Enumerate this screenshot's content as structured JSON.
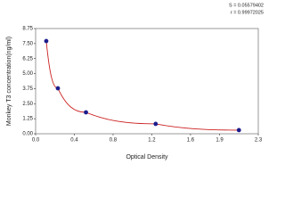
{
  "chart_data": {
    "type": "scatter",
    "x_label": "Optical Density",
    "y_label": "Monkey T3 concentration(ng/ml)",
    "annotations": [
      "S = 0.05579402",
      "r = 0.99972025"
    ],
    "x": [
      0.11,
      0.23,
      0.52,
      1.24,
      2.1
    ],
    "values": [
      7.71,
      3.78,
      1.78,
      0.82,
      0.3
    ],
    "color": "#1c1c8c",
    "line_color": "#cc2020",
    "xlim": [
      0,
      2.3
    ],
    "xticks": [
      {
        "value": 0,
        "label": "0.0"
      },
      0.4,
      0.8,
      1.2,
      1.6,
      1.9,
      2.3
    ],
    "ylim": [
      0,
      8.75
    ],
    "yticks": [
      {
        "value": 0,
        "label": "0.00"
      },
      1.25,
      {
        "value": 2.5,
        "label": "2.50"
      },
      3.75,
      {
        "value": 5,
        "label": "5.00"
      },
      6.25,
      {
        "value": 7.5,
        "label": "7.50"
      },
      8.75
    ]
  }
}
